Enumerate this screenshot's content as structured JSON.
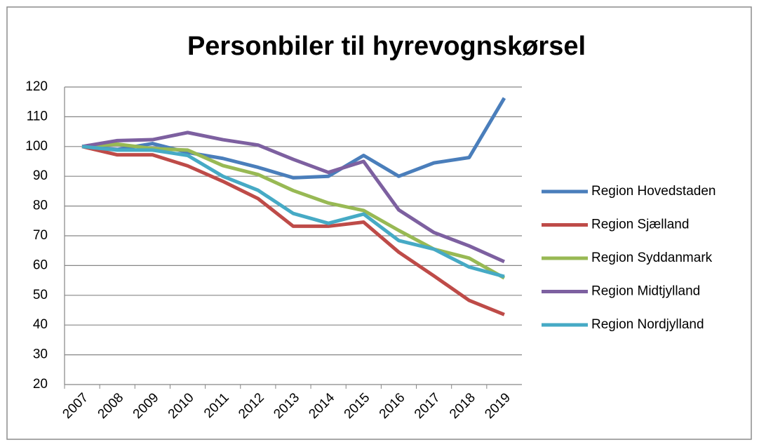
{
  "chart_data": {
    "type": "line",
    "title": "Personbiler til hyrevognskørsel",
    "categories": [
      "2007",
      "2008",
      "2009",
      "2010",
      "2011",
      "2012",
      "2013",
      "2014",
      "2015",
      "2016",
      "2017",
      "2018",
      "2019"
    ],
    "series": [
      {
        "name": "Region Hovedstaden",
        "color": "#4a7ebb",
        "values": [
          100,
          99,
          101,
          98,
          96,
          93,
          89.5,
          90,
          97,
          90,
          94.5,
          96.3,
          116.3
        ]
      },
      {
        "name": "Region Sjælland",
        "color": "#be4b48",
        "values": [
          100,
          97.2,
          97.2,
          93.5,
          88.3,
          82.5,
          73.2,
          73.2,
          74.6,
          64.5,
          56.5,
          48.3,
          43.5
        ]
      },
      {
        "name": "Region Syddanmark",
        "color": "#98b954",
        "values": [
          100,
          100.8,
          99.3,
          98.8,
          93.6,
          90.6,
          85.2,
          81,
          78.5,
          71.8,
          65.5,
          62.5,
          55.8
        ]
      },
      {
        "name": "Region Midtjylland",
        "color": "#7d60a0",
        "values": [
          100,
          102,
          102.3,
          104.7,
          102.3,
          100.5,
          95.7,
          91.3,
          95,
          78.7,
          71.1,
          66.6,
          61.3
        ]
      },
      {
        "name": "Region Nordjylland",
        "color": "#46aac5",
        "values": [
          100,
          98.8,
          98.8,
          97,
          90,
          85.3,
          77.5,
          74.2,
          77.3,
          68.4,
          65.5,
          59.5,
          56.3
        ]
      }
    ],
    "ylim": [
      20,
      120
    ],
    "yticks": [
      20,
      30,
      40,
      50,
      60,
      70,
      80,
      90,
      100,
      110,
      120
    ],
    "grid": true,
    "legend": "right"
  }
}
